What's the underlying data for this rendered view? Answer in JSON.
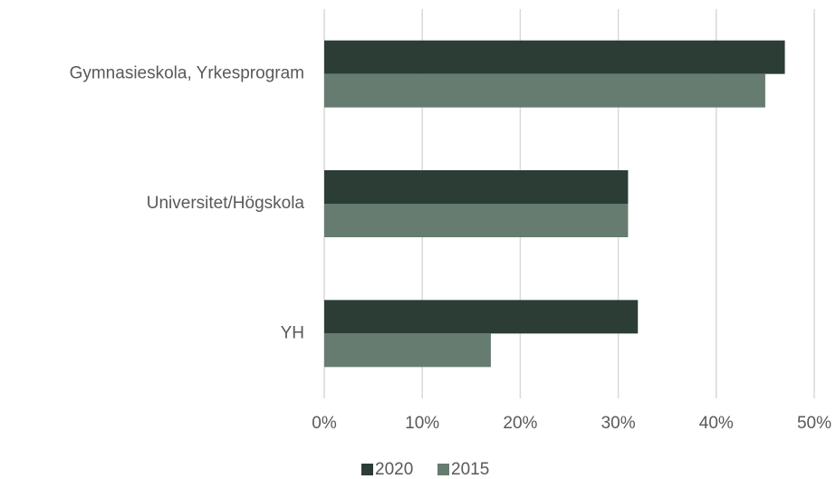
{
  "chart_data": {
    "type": "hbar",
    "categories": [
      "Gymnasieskola, Yrkesprogram",
      "Universitet/Högskola",
      "YH"
    ],
    "series": [
      {
        "name": "2020",
        "color": "#2b3d35",
        "values": [
          47,
          31,
          32
        ]
      },
      {
        "name": "2015",
        "color": "#667c70",
        "values": [
          45,
          31,
          17
        ]
      }
    ],
    "xlim": [
      0,
      50
    ],
    "xticks": [
      {
        "value": 0,
        "label": "0%"
      },
      {
        "value": 10,
        "label": "10%"
      },
      {
        "value": 20,
        "label": "20%"
      },
      {
        "value": 30,
        "label": "30%"
      },
      {
        "value": 40,
        "label": "40%"
      },
      {
        "value": 50,
        "label": "50%"
      }
    ],
    "grid": true,
    "legend": "bottom"
  }
}
